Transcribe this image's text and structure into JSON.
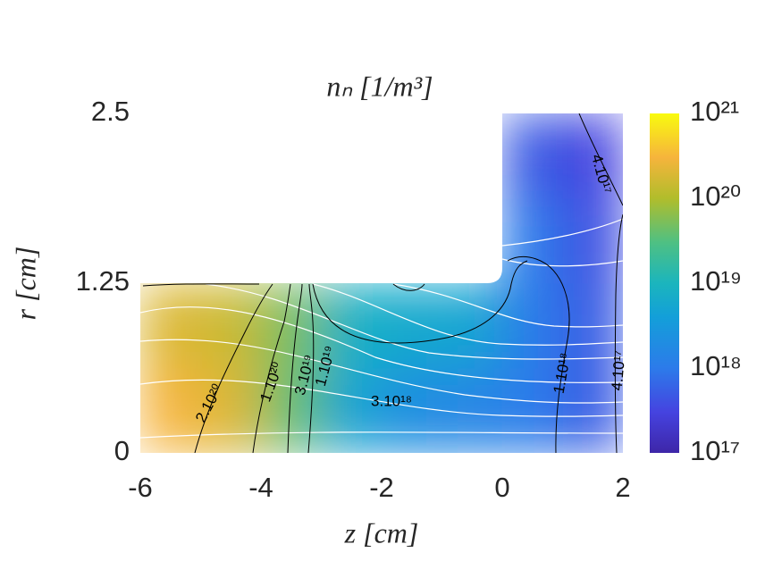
{
  "chart_data": {
    "type": "heatmap",
    "title": "nₙ [1/m³]",
    "xlabel": "z [cm]",
    "ylabel": "r [cm]",
    "colormap": "parula",
    "log_color": true,
    "x": [
      -5.5,
      -4.5,
      -3.5,
      -2.5,
      -1.5,
      -0.5,
      0.5,
      1.5
    ],
    "y": [
      0.3125,
      0.9375,
      1.5625,
      2.1875
    ],
    "z": [
      [
        3e+20,
        2e+20,
        4e+19,
        5e+18,
        2e+18,
        1.5e+18,
        1e+18,
        5e+17
      ],
      [
        2e+20,
        1.5e+20,
        5e+19,
        8e+18,
        6e+18,
        5e+18,
        1e+18,
        5e+17
      ],
      [
        null,
        null,
        null,
        null,
        null,
        null,
        1e+18,
        4e+17
      ],
      [
        null,
        null,
        null,
        null,
        null,
        null,
        5e+17,
        3e+17
      ]
    ],
    "xlim": [
      -6,
      2
    ],
    "ylim": [
      0,
      2.5
    ],
    "xticks": [
      -6,
      -4,
      -2,
      0,
      2
    ],
    "yticks": [
      0,
      1.25,
      2.5
    ],
    "clim": [
      1e+17,
      1e+21
    ],
    "cticks": [
      {
        "value": 1e+17,
        "label": "10¹⁷"
      },
      {
        "value": 1e+18,
        "label": "10¹⁸"
      },
      {
        "value": 1e+19,
        "label": "10¹⁹"
      },
      {
        "value": 1e+20,
        "label": "10²⁰"
      },
      {
        "value": 1e+21,
        "label": "10²¹"
      }
    ],
    "contour_levels": [
      {
        "value": 2e+20,
        "label": "2.10²⁰"
      },
      {
        "value": 1e+20,
        "label": "1.10²⁰"
      },
      {
        "value": 3e+19,
        "label": "3.10¹⁹"
      },
      {
        "value": 1e+19,
        "label": "1.10¹⁹"
      },
      {
        "value": 3e+18,
        "label": "3.10¹⁸"
      },
      {
        "value": 1e+18,
        "label": "1.10¹⁸"
      },
      {
        "value": 4e+17,
        "label": "4.10¹⁷"
      }
    ]
  }
}
